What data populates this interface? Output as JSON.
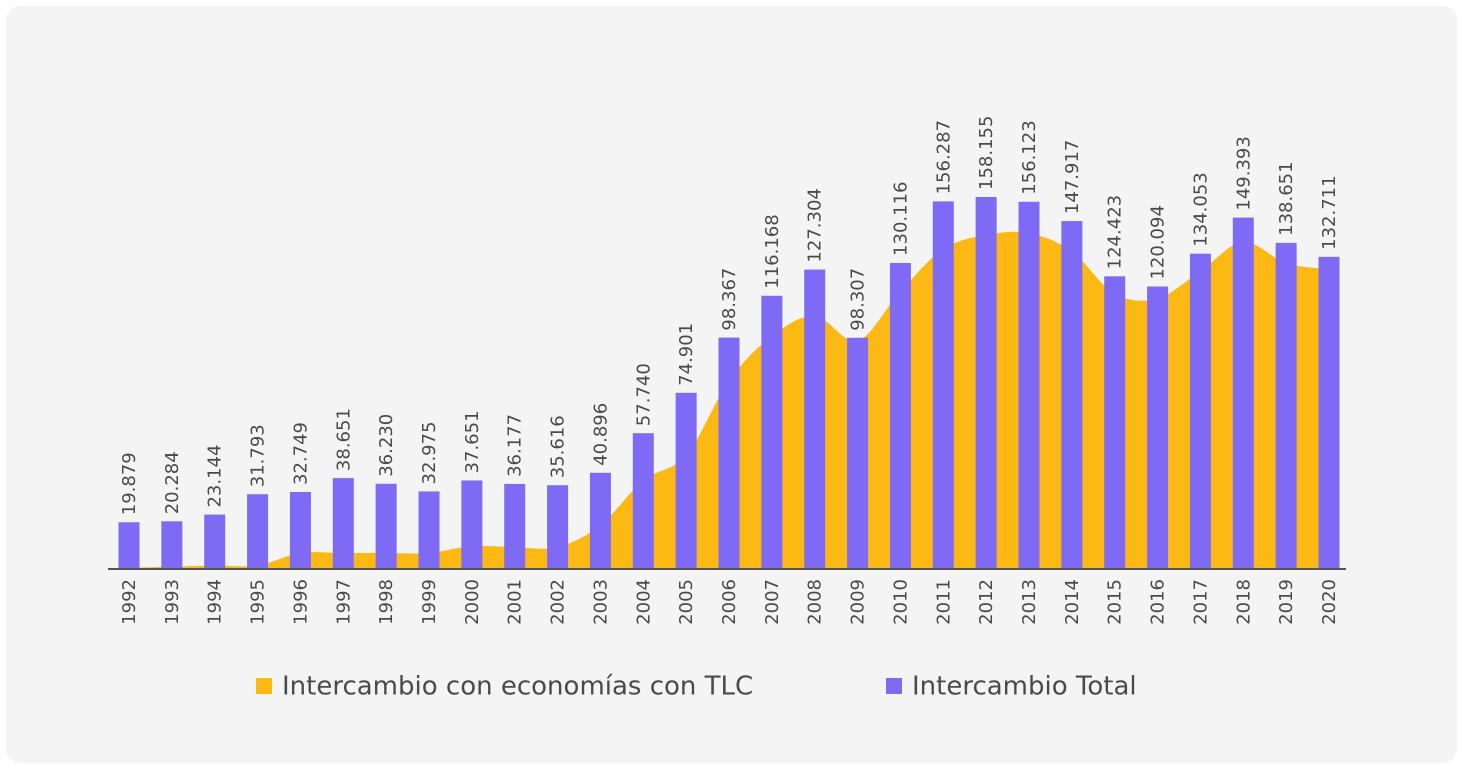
{
  "chart_data": {
    "type": "bar",
    "categories": [
      "1992",
      "1993",
      "1994",
      "1995",
      "1996",
      "1997",
      "1998",
      "1999",
      "2000",
      "2001",
      "2002",
      "2003",
      "2004",
      "2005",
      "2006",
      "2007",
      "2008",
      "2009",
      "2010",
      "2011",
      "2012",
      "2013",
      "2014",
      "2015",
      "2016",
      "2017",
      "2018",
      "2019",
      "2020"
    ],
    "series": [
      {
        "name": "Intercambio con economías con TLC",
        "type": "area",
        "color": "#fdb913",
        "values": [
          0.5,
          1,
          1.5,
          1.5,
          6.8,
          6.8,
          6.8,
          6.8,
          9.7,
          9.3,
          9.3,
          18.6,
          37.7,
          48.3,
          80,
          99,
          107.6,
          97,
          118,
          136,
          142,
          142.8,
          135,
          117,
          115,
          126.7,
          139,
          130,
          127.5
        ]
      },
      {
        "name": "Intercambio Total",
        "type": "bar",
        "color": "#7f6af5",
        "values": [
          19.879,
          20.284,
          23.144,
          31.793,
          32.749,
          38.651,
          36.23,
          32.975,
          37.651,
          36.177,
          35.616,
          40.896,
          57.74,
          74.901,
          98.367,
          116.168,
          127.304,
          98.307,
          130.116,
          156.287,
          158.155,
          156.123,
          147.917,
          124.423,
          120.094,
          134.053,
          149.393,
          138.651,
          132.711
        ],
        "value_labels": [
          "19.879",
          "20.284",
          "23.144",
          "31.793",
          "32.749",
          "38.651",
          "36.230",
          "32.975",
          "37.651",
          "36.177",
          "35.616",
          "40.896",
          "57.740",
          "74.901",
          "98.367",
          "116.168",
          "127.304",
          "98.307",
          "130.116",
          "156.287",
          "158.155",
          "156.123",
          "147.917",
          "124.423",
          "120.094",
          "134.053",
          "149.393",
          "138.651",
          "132.711"
        ]
      }
    ],
    "legend": "bottom"
  }
}
